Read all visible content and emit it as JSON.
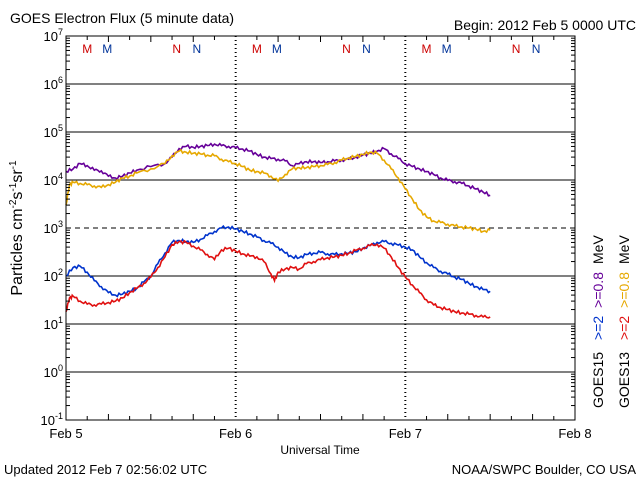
{
  "header": {
    "title": "GOES Electron Flux (5 minute data)",
    "begin": "Begin: 2012 Feb 5 0000 UTC"
  },
  "footer": {
    "updated": "Updated 2012 Feb  7 02:56:02 UTC",
    "credit": "NOAA/SWPC Boulder, CO USA"
  },
  "colors": {
    "goes15_08": "#660099",
    "goes13_08": "#e6a800",
    "goes15_2": "#0033cc",
    "goes13_2": "#e01010",
    "marker_red": "#cc0000",
    "marker_blue": "#003399"
  },
  "chart_data": {
    "type": "line",
    "xlabel": "Universal Time",
    "ylabel_base": "Particles cm",
    "ylabel_exp1": "-2",
    "ylabel_mid1": "s",
    "ylabel_exp2": "-1",
    "ylabel_mid2": "sr",
    "ylabel_exp3": "-1",
    "y_scale": "log",
    "ylim": [
      0.1,
      10000000
    ],
    "xlim": [
      "2012-02-05 00:00",
      "2012-02-08 00:00"
    ],
    "x_ticks": [
      {
        "label": "Feb 5",
        "t": "2012-02-05 00:00"
      },
      {
        "label": "Feb 6",
        "t": "2012-02-06 00:00"
      },
      {
        "label": "Feb 7",
        "t": "2012-02-07 00:00"
      },
      {
        "label": "Feb 8",
        "t": "2012-02-08 00:00"
      }
    ],
    "y_ticks": [
      {
        "base": "10",
        "exp": "-1",
        "value": 0.1
      },
      {
        "base": "10",
        "exp": "0",
        "value": 1
      },
      {
        "base": "10",
        "exp": "1",
        "value": 10
      },
      {
        "base": "10",
        "exp": "2",
        "value": 100
      },
      {
        "base": "10",
        "exp": "3",
        "value": 1000
      },
      {
        "base": "10",
        "exp": "4",
        "value": 10000
      },
      {
        "base": "10",
        "exp": "5",
        "value": 100000
      },
      {
        "base": "10",
        "exp": "6",
        "value": 1000000
      },
      {
        "base": "10",
        "exp": "7",
        "value": 10000000
      }
    ],
    "dashed_level": 1000,
    "markers": [
      {
        "label": "M",
        "t": "2012-02-05 03:00",
        "sat": "GOES13"
      },
      {
        "label": "M",
        "t": "2012-02-05 05:50",
        "sat": "GOES15"
      },
      {
        "label": "N",
        "t": "2012-02-05 15:40",
        "sat": "GOES13"
      },
      {
        "label": "N",
        "t": "2012-02-05 18:30",
        "sat": "GOES15"
      },
      {
        "label": "M",
        "t": "2012-02-06 03:00",
        "sat": "GOES13"
      },
      {
        "label": "M",
        "t": "2012-02-06 05:50",
        "sat": "GOES15"
      },
      {
        "label": "N",
        "t": "2012-02-06 15:40",
        "sat": "GOES13"
      },
      {
        "label": "N",
        "t": "2012-02-06 18:30",
        "sat": "GOES15"
      },
      {
        "label": "M",
        "t": "2012-02-07 03:00",
        "sat": "GOES13"
      },
      {
        "label": "M",
        "t": "2012-02-07 05:50",
        "sat": "GOES15"
      },
      {
        "label": "N",
        "t": "2012-02-07 15:40",
        "sat": "GOES13"
      },
      {
        "label": "N",
        "t": "2012-02-07 18:30",
        "sat": "GOES15"
      }
    ],
    "legend": {
      "col1": [
        {
          "text": "GOES15",
          "color": "#000000"
        },
        {
          "text": ">=2",
          "color": "#0033cc"
        },
        {
          "text": ">=0.8",
          "color": "#660099"
        },
        {
          "text": "MeV",
          "color": "#000000"
        }
      ],
      "col2": [
        {
          "text": "GOES13",
          "color": "#000000"
        },
        {
          "text": ">=2",
          "color": "#e01010"
        },
        {
          "text": ">=0.8",
          "color": "#e6a800"
        },
        {
          "text": "MeV",
          "color": "#000000"
        }
      ]
    },
    "series": [
      {
        "name": "GOES15 >=0.8 MeV",
        "color": "#660099",
        "x_hours": [
          0,
          1,
          2,
          3,
          4,
          5,
          6,
          7,
          8,
          9,
          10,
          12,
          14,
          15,
          16,
          17,
          18,
          19,
          20,
          21,
          22,
          23,
          24,
          25,
          26,
          27,
          28,
          29,
          30,
          31,
          32,
          33,
          34,
          35,
          36,
          37,
          38,
          39,
          40,
          41,
          42,
          43,
          44,
          45,
          46,
          47,
          48,
          49,
          50,
          51,
          52,
          53,
          54,
          55,
          56,
          57,
          58,
          59,
          60
        ],
        "values": [
          15000,
          17000,
          22000,
          20000,
          16000,
          15500,
          12000,
          11000,
          12000,
          14000,
          16000,
          19000,
          22000,
          30000,
          45000,
          50000,
          48000,
          50000,
          52000,
          56000,
          52000,
          50000,
          47000,
          44000,
          40000,
          34000,
          30000,
          28000,
          27000,
          25000,
          20000,
          22000,
          24000,
          24000,
          23000,
          24000,
          25000,
          26000,
          27000,
          30000,
          33000,
          36000,
          40000,
          45000,
          35000,
          28000,
          22000,
          19000,
          17000,
          15000,
          13000,
          11000,
          9800,
          9200,
          8500,
          7500,
          6500,
          5600,
          4800
        ]
      },
      {
        "name": "GOES13 >=0.8 MeV",
        "color": "#e6a800",
        "x_hours": [
          0,
          0.5,
          1,
          2,
          3,
          4,
          5,
          6,
          7,
          8,
          9,
          10,
          12,
          14,
          15,
          16,
          17,
          18,
          19,
          20,
          21,
          22,
          23,
          24,
          25,
          26,
          27,
          28,
          29,
          30,
          31,
          32,
          33,
          34,
          35,
          36,
          37,
          38,
          39,
          40,
          41,
          42,
          43,
          44,
          45,
          46,
          47,
          48,
          49,
          50,
          51,
          52,
          53,
          54,
          55,
          56,
          57,
          58,
          59,
          60
        ],
        "values": [
          3000,
          8000,
          9000,
          8500,
          8000,
          7500,
          7000,
          8000,
          9000,
          11000,
          12000,
          14000,
          17000,
          22000,
          32000,
          40000,
          38000,
          36000,
          35000,
          33000,
          32000,
          27000,
          24000,
          22000,
          19000,
          16000,
          15000,
          14000,
          12000,
          9500,
          13000,
          17000,
          18000,
          18000,
          19000,
          20000,
          21000,
          23000,
          26000,
          29000,
          31000,
          34000,
          38000,
          36000,
          26000,
          17000,
          11000,
          6500,
          4000,
          2400,
          1700,
          1400,
          1300,
          1200,
          1100,
          1050,
          1000,
          950,
          850,
          900
        ]
      },
      {
        "name": "GOES15 >=2 MeV",
        "color": "#0033cc",
        "x_hours": [
          0,
          1,
          2,
          3,
          4,
          5,
          6,
          7,
          8,
          9,
          10,
          11,
          12,
          13,
          14,
          15,
          16,
          17,
          18,
          19,
          20,
          21,
          22,
          23,
          24,
          25,
          26,
          27,
          28,
          29,
          30,
          31,
          32,
          33,
          34,
          35,
          36,
          37,
          38,
          39,
          40,
          41,
          42,
          43,
          44,
          45,
          46,
          47,
          48,
          49,
          50,
          51,
          52,
          53,
          54,
          55,
          56,
          57,
          58,
          59,
          60
        ],
        "values": [
          100,
          150,
          160,
          120,
          80,
          60,
          45,
          40,
          42,
          48,
          55,
          75,
          100,
          180,
          300,
          500,
          550,
          520,
          500,
          580,
          700,
          850,
          1000,
          1050,
          950,
          850,
          750,
          650,
          550,
          480,
          400,
          300,
          250,
          240,
          280,
          300,
          310,
          290,
          280,
          290,
          300,
          320,
          380,
          430,
          500,
          520,
          480,
          440,
          400,
          350,
          250,
          190,
          150,
          125,
          110,
          95,
          85,
          70,
          60,
          52,
          48
        ]
      },
      {
        "name": "GOES13 >=2 MeV",
        "color": "#e01010",
        "x_hours": [
          0,
          0.5,
          1,
          2,
          3,
          4,
          5,
          6,
          7,
          8,
          9,
          10,
          11,
          12,
          13,
          14,
          15,
          16,
          17,
          18,
          19,
          20,
          21,
          22,
          23,
          24,
          25,
          26,
          27,
          28,
          29,
          29.5,
          30,
          31,
          32,
          33,
          34,
          35,
          36,
          37,
          38,
          39,
          40,
          41,
          42,
          43,
          44,
          45,
          46,
          47,
          48,
          49,
          50,
          51,
          52,
          53,
          54,
          55,
          56,
          57,
          58,
          59,
          60
        ],
        "values": [
          18,
          35,
          38,
          30,
          26,
          25,
          26,
          28,
          30,
          35,
          45,
          55,
          70,
          95,
          150,
          250,
          450,
          520,
          500,
          420,
          350,
          280,
          220,
          350,
          380,
          330,
          290,
          260,
          250,
          200,
          110,
          80,
          120,
          140,
          150,
          140,
          180,
          200,
          220,
          240,
          250,
          270,
          300,
          340,
          380,
          430,
          460,
          380,
          250,
          150,
          95,
          65,
          45,
          32,
          25,
          22,
          20,
          18,
          17,
          16,
          15,
          14,
          14
        ]
      }
    ]
  }
}
